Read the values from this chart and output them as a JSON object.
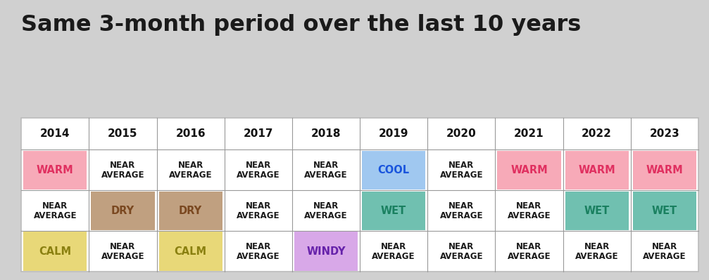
{
  "title": "Same 3-month period over the last 10 years",
  "background_color": "#d0d0d0",
  "table_background": "#ffffff",
  "years": [
    "2014",
    "2015",
    "2016",
    "2017",
    "2018",
    "2019",
    "2020",
    "2021",
    "2022",
    "2023"
  ],
  "rows": [
    {
      "cells": [
        {
          "text": "WARM",
          "bg": "#f7aab8",
          "fg": "#e03060",
          "bold": true
        },
        {
          "text": "NEAR\nAVERAGE",
          "bg": null,
          "fg": "#1a1a1a",
          "bold": true
        },
        {
          "text": "NEAR\nAVERAGE",
          "bg": null,
          "fg": "#1a1a1a",
          "bold": true
        },
        {
          "text": "NEAR\nAVERAGE",
          "bg": null,
          "fg": "#1a1a1a",
          "bold": true
        },
        {
          "text": "NEAR\nAVERAGE",
          "bg": null,
          "fg": "#1a1a1a",
          "bold": true
        },
        {
          "text": "COOL",
          "bg": "#a0c8f0",
          "fg": "#1a55dd",
          "bold": true
        },
        {
          "text": "NEAR\nAVERAGE",
          "bg": null,
          "fg": "#1a1a1a",
          "bold": true
        },
        {
          "text": "WARM",
          "bg": "#f7aab8",
          "fg": "#e03060",
          "bold": true
        },
        {
          "text": "WARM",
          "bg": "#f7aab8",
          "fg": "#e03060",
          "bold": true
        },
        {
          "text": "WARM",
          "bg": "#f7aab8",
          "fg": "#e03060",
          "bold": true
        }
      ]
    },
    {
      "cells": [
        {
          "text": "NEAR\nAVERAGE",
          "bg": null,
          "fg": "#1a1a1a",
          "bold": true
        },
        {
          "text": "DRY",
          "bg": "#c0a080",
          "fg": "#7a4820",
          "bold": true
        },
        {
          "text": "DRY",
          "bg": "#c0a080",
          "fg": "#7a4820",
          "bold": true
        },
        {
          "text": "NEAR\nAVERAGE",
          "bg": null,
          "fg": "#1a1a1a",
          "bold": true
        },
        {
          "text": "NEAR\nAVERAGE",
          "bg": null,
          "fg": "#1a1a1a",
          "bold": true
        },
        {
          "text": "WET",
          "bg": "#70c0b0",
          "fg": "#1a8060",
          "bold": true
        },
        {
          "text": "NEAR\nAVERAGE",
          "bg": null,
          "fg": "#1a1a1a",
          "bold": true
        },
        {
          "text": "NEAR\nAVERAGE",
          "bg": null,
          "fg": "#1a1a1a",
          "bold": true
        },
        {
          "text": "WET",
          "bg": "#70c0b0",
          "fg": "#1a8060",
          "bold": true
        },
        {
          "text": "WET",
          "bg": "#70c0b0",
          "fg": "#1a8060",
          "bold": true
        }
      ]
    },
    {
      "cells": [
        {
          "text": "CALM",
          "bg": "#e8d878",
          "fg": "#8a8010",
          "bold": true
        },
        {
          "text": "NEAR\nAVERAGE",
          "bg": null,
          "fg": "#1a1a1a",
          "bold": true
        },
        {
          "text": "CALM",
          "bg": "#e8d878",
          "fg": "#8a8010",
          "bold": true
        },
        {
          "text": "NEAR\nAVERAGE",
          "bg": null,
          "fg": "#1a1a1a",
          "bold": true
        },
        {
          "text": "WINDY",
          "bg": "#d8a8e8",
          "fg": "#6622aa",
          "bold": true
        },
        {
          "text": "NEAR\nAVERAGE",
          "bg": null,
          "fg": "#1a1a1a",
          "bold": true
        },
        {
          "text": "NEAR\nAVERAGE",
          "bg": null,
          "fg": "#1a1a1a",
          "bold": true
        },
        {
          "text": "NEAR\nAVERAGE",
          "bg": null,
          "fg": "#1a1a1a",
          "bold": true
        },
        {
          "text": "NEAR\nAVERAGE",
          "bg": null,
          "fg": "#1a1a1a",
          "bold": true
        },
        {
          "text": "NEAR\nAVERAGE",
          "bg": null,
          "fg": "#1a1a1a",
          "bold": true
        }
      ]
    }
  ]
}
